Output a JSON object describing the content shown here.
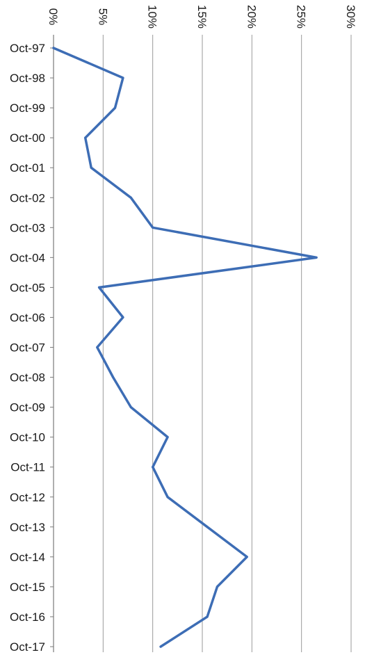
{
  "chart_data": {
    "type": "line",
    "orientation": "horizontal",
    "categories": [
      "Oct-97",
      "Oct-98",
      "Oct-99",
      "Oct-00",
      "Oct-01",
      "Oct-02",
      "Oct-03",
      "Oct-04",
      "Oct-05",
      "Oct-06",
      "Oct-07",
      "Oct-08",
      "Oct-09",
      "Oct-10",
      "Oct-11",
      "Oct-12",
      "Oct-13",
      "Oct-14",
      "Oct-15",
      "Oct-16",
      "Oct-17"
    ],
    "series": [
      {
        "values": [
          0.0,
          7.0,
          6.2,
          3.2,
          3.8,
          7.8,
          10.0,
          26.5,
          4.6,
          7.0,
          4.4,
          6.0,
          7.8,
          11.5,
          10.0,
          11.5,
          15.5,
          19.5,
          16.5,
          15.5,
          10.8
        ]
      }
    ],
    "value_axis": {
      "ticks": [
        "0%",
        "5%",
        "10%",
        "15%",
        "20%",
        "25%",
        "30%"
      ],
      "range": [
        0,
        30
      ],
      "unit": "%",
      "label_rotation": "rotated-90-degrees"
    },
    "title": "",
    "xlabel": "",
    "ylabel": "",
    "grid": true,
    "legend": "none",
    "colors": {
      "series": "#3d6db5",
      "grid": "#9a9a9a",
      "text": "#1a1a1a"
    }
  }
}
